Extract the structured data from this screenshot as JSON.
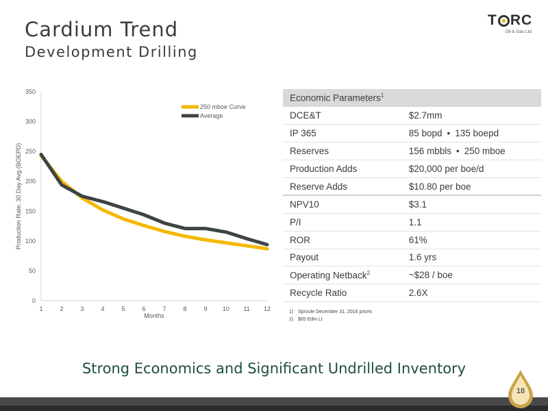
{
  "slide": {
    "title": "Cardium Trend",
    "subtitle": "Development Drilling",
    "tagline": "Strong Economics and Significant Undrilled Inventory",
    "page_number": "18"
  },
  "logo": {
    "name": "TORC",
    "sub": "Oil & Gas Ltd"
  },
  "chart_data": {
    "type": "line",
    "xlabel": "Months",
    "ylabel": "Production Rate, 30 Day Avg (BOEPD)",
    "x": [
      1,
      2,
      3,
      4,
      5,
      6,
      7,
      8,
      9,
      10,
      11,
      12
    ],
    "ylim": [
      0,
      350
    ],
    "yticks": [
      0,
      50,
      100,
      150,
      200,
      250,
      300,
      350
    ],
    "grid": false,
    "legend": "top-right",
    "series": [
      {
        "name": "250 mboe Curve",
        "color": "#f5b800",
        "values": [
          243,
          200,
          172,
          152,
          137,
          126,
          116,
          108,
          102,
          97,
          92,
          87
        ]
      },
      {
        "name": "Average",
        "color": "#3d4446",
        "values": [
          245,
          194,
          175,
          166,
          155,
          144,
          130,
          121,
          121,
          115,
          104,
          94
        ]
      }
    ]
  },
  "economics": {
    "header": "Economic Parameters",
    "header_sup": "1",
    "rows": [
      {
        "label": "DCE&T",
        "value": "$2.7mm"
      },
      {
        "label": "IP 365",
        "value_a": "85 bopd",
        "dot": "•",
        "value_b": "135 boepd"
      },
      {
        "label": "Reserves",
        "value_a": "156 mbbls",
        "dot": "•",
        "value_b": "250 mboe"
      },
      {
        "label": "Production Adds",
        "value": "$20,000 per boe/d"
      },
      {
        "label": "Reserve Adds",
        "value": "$10.80 per boe"
      },
      {
        "label": "NPV10",
        "value": "$3.1"
      },
      {
        "label": "P/I",
        "value": "1.1"
      },
      {
        "label": "ROR",
        "value": "61%"
      },
      {
        "label": "Payout",
        "value": "1.6 yrs"
      },
      {
        "label": "Operating Netback",
        "label_sup": "2",
        "value": "~$28 / boe"
      },
      {
        "label": "Recycle Ratio",
        "value": "2.6X"
      }
    ]
  },
  "notes": [
    {
      "n": "1)",
      "text": "Sproule December 31, 2016 prices"
    },
    {
      "n": "2)",
      "text": "$65 Edm Lt"
    }
  ]
}
